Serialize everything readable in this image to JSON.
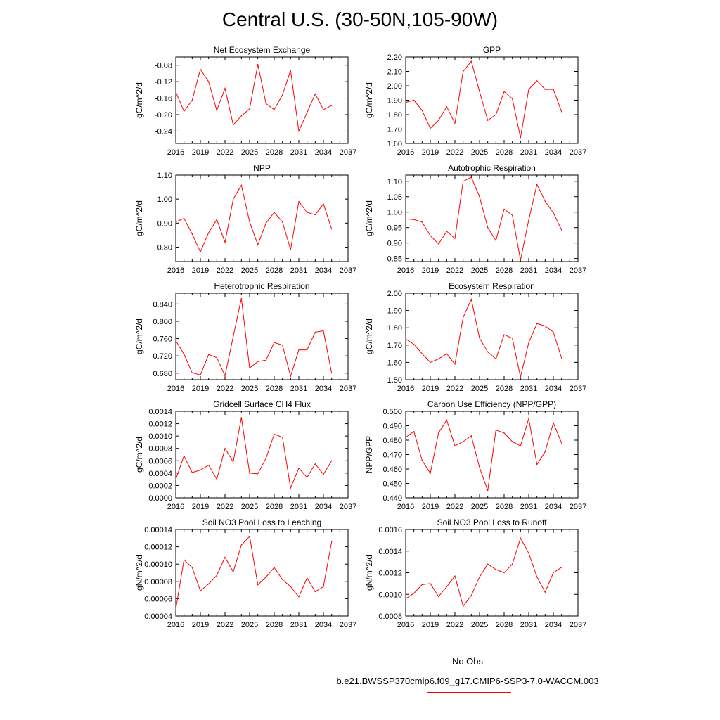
{
  "title": "Central U.S. (30-50N,105-90W)",
  "colors": {
    "model": "#ff0000",
    "obs": "#6666ff",
    "axis": "#000000"
  },
  "legend": {
    "title": "No Obs",
    "model_label": "b.e21.BWSSP370cmip6.f09_g17.CMIP6-SSP3-7.0-WACCM.003"
  },
  "chart_data": [
    {
      "type": "line",
      "title": "Net Ecosystem Exchange",
      "ylabel": "gC/m^2/d",
      "xlim": [
        2016,
        2037
      ],
      "ylim": [
        -0.27,
        -0.06
      ],
      "xticks": [
        "2016",
        "2019",
        "2022",
        "2025",
        "2028",
        "2031",
        "2034",
        "2037"
      ],
      "yticks": [
        "-0.08",
        "-0.12",
        "-0.16",
        "-0.20",
        "-0.24"
      ],
      "x": [
        2016,
        2017,
        2018,
        2019,
        2020,
        2021,
        2022,
        2023,
        2024,
        2025,
        2026,
        2027,
        2028,
        2029,
        2030,
        2031,
        2032,
        2033,
        2034,
        2035
      ],
      "series": [
        {
          "values": [
            -0.145,
            -0.192,
            -0.165,
            -0.09,
            -0.12,
            -0.19,
            -0.136,
            -0.225,
            -0.203,
            -0.186,
            -0.078,
            -0.173,
            -0.188,
            -0.152,
            -0.093,
            -0.24,
            -0.195,
            -0.15,
            -0.188,
            -0.178
          ]
        }
      ]
    },
    {
      "type": "line",
      "title": "GPP",
      "ylabel": "gC/m^2/d",
      "xlim": [
        2016,
        2037
      ],
      "ylim": [
        1.6,
        2.2
      ],
      "xticks": [
        "2016",
        "2019",
        "2022",
        "2025",
        "2028",
        "2031",
        "2034",
        "2037"
      ],
      "yticks": [
        "2.20",
        "2.10",
        "2.00",
        "1.90",
        "1.80",
        "1.70",
        "1.60"
      ],
      "x": [
        2016,
        2017,
        2018,
        2019,
        2020,
        2021,
        2022,
        2023,
        2024,
        2025,
        2026,
        2027,
        2028,
        2029,
        2030,
        2031,
        2032,
        2033,
        2034,
        2035
      ],
      "series": [
        {
          "values": [
            1.885,
            1.9,
            1.83,
            1.705,
            1.76,
            1.855,
            1.74,
            2.1,
            2.17,
            1.96,
            1.76,
            1.8,
            1.96,
            1.91,
            1.64,
            1.975,
            2.035,
            1.975,
            1.975,
            1.82
          ]
        }
      ]
    },
    {
      "type": "line",
      "title": "NPP",
      "ylabel": "gC/m^2/d",
      "xlim": [
        2016,
        2037
      ],
      "ylim": [
        0.74,
        1.1
      ],
      "xticks": [
        "2016",
        "2019",
        "2022",
        "2025",
        "2028",
        "2031",
        "2034",
        "2037"
      ],
      "yticks": [
        "1.10",
        "1.00",
        "0.90",
        "0.80"
      ],
      "x": [
        2016,
        2017,
        2018,
        2019,
        2020,
        2021,
        2022,
        2023,
        2024,
        2025,
        2026,
        2027,
        2028,
        2029,
        2030,
        2031,
        2032,
        2033,
        2034,
        2035
      ],
      "series": [
        {
          "values": [
            0.905,
            0.92,
            0.855,
            0.78,
            0.86,
            0.915,
            0.82,
            1.0,
            1.058,
            0.905,
            0.81,
            0.9,
            0.945,
            0.905,
            0.79,
            0.99,
            0.945,
            0.935,
            0.98,
            0.875
          ]
        }
      ]
    },
    {
      "type": "line",
      "title": "Autotrophic Respiration",
      "ylabel": "gC/m^2/d",
      "xlim": [
        2016,
        2037
      ],
      "ylim": [
        0.84,
        1.12
      ],
      "xticks": [
        "2016",
        "2019",
        "2022",
        "2025",
        "2028",
        "2031",
        "2034",
        "2037"
      ],
      "yticks": [
        "1.10",
        "1.05",
        "1.00",
        "0.95",
        "0.90",
        "0.85"
      ],
      "x": [
        2016,
        2017,
        2018,
        2019,
        2020,
        2021,
        2022,
        2023,
        2024,
        2025,
        2026,
        2027,
        2028,
        2029,
        2030,
        2031,
        2032,
        2033,
        2034,
        2035
      ],
      "series": [
        {
          "values": [
            0.978,
            0.976,
            0.968,
            0.924,
            0.897,
            0.938,
            0.915,
            1.1,
            1.113,
            1.05,
            0.95,
            0.908,
            1.01,
            0.99,
            0.845,
            0.975,
            1.09,
            1.035,
            0.998,
            0.942
          ]
        }
      ]
    },
    {
      "type": "line",
      "title": "Heterotrophic Respiration",
      "ylabel": "gC/m^2/d",
      "xlim": [
        2016,
        2037
      ],
      "ylim": [
        0.665,
        0.865
      ],
      "xticks": [
        "2016",
        "2019",
        "2022",
        "2025",
        "2028",
        "2031",
        "2034",
        "2037"
      ],
      "yticks": [
        "0.840",
        "0.800",
        "0.760",
        "0.720",
        "0.680"
      ],
      "x": [
        2016,
        2017,
        2018,
        2019,
        2020,
        2021,
        2022,
        2023,
        2024,
        2025,
        2026,
        2027,
        2028,
        2029,
        2030,
        2031,
        2032,
        2033,
        2034,
        2035
      ],
      "series": [
        {
          "values": [
            0.755,
            0.724,
            0.681,
            0.676,
            0.723,
            0.716,
            0.674,
            0.765,
            0.853,
            0.692,
            0.707,
            0.71,
            0.751,
            0.745,
            0.673,
            0.734,
            0.734,
            0.775,
            0.778,
            0.68
          ]
        }
      ]
    },
    {
      "type": "line",
      "title": "Ecosystem Respiration",
      "ylabel": "gC/m^2/d",
      "xlim": [
        2016,
        2037
      ],
      "ylim": [
        1.5,
        2.0
      ],
      "xticks": [
        "2016",
        "2019",
        "2022",
        "2025",
        "2028",
        "2031",
        "2034",
        "2037"
      ],
      "yticks": [
        "2.00",
        "1.90",
        "1.80",
        "1.70",
        "1.60",
        "1.50"
      ],
      "x": [
        2016,
        2017,
        2018,
        2019,
        2020,
        2021,
        2022,
        2023,
        2024,
        2025,
        2026,
        2027,
        2028,
        2029,
        2030,
        2031,
        2032,
        2033,
        2034,
        2035
      ],
      "series": [
        {
          "values": [
            1.735,
            1.705,
            1.65,
            1.6,
            1.62,
            1.65,
            1.59,
            1.86,
            1.965,
            1.74,
            1.66,
            1.62,
            1.76,
            1.74,
            1.515,
            1.715,
            1.825,
            1.81,
            1.775,
            1.625
          ]
        }
      ]
    },
    {
      "type": "line",
      "title": "Gridcell Surface CH4 Flux",
      "ylabel": "gC/m^2/d",
      "xlim": [
        2016,
        2037
      ],
      "ylim": [
        0.0,
        0.0014
      ],
      "xticks": [
        "2016",
        "2019",
        "2022",
        "2025",
        "2028",
        "2031",
        "2034",
        "2037"
      ],
      "yticks": [
        "0.0014",
        "0.0012",
        "0.0010",
        "0.0008",
        "0.0006",
        "0.0004",
        "0.0002",
        "0.0000"
      ],
      "x": [
        2016,
        2017,
        2018,
        2019,
        2020,
        2021,
        2022,
        2023,
        2024,
        2025,
        2026,
        2027,
        2028,
        2029,
        2030,
        2031,
        2032,
        2033,
        2034,
        2035
      ],
      "series": [
        {
          "values": [
            0.0003,
            0.00068,
            0.00041,
            0.00045,
            0.00053,
            0.0003,
            0.0008,
            0.00058,
            0.0013,
            0.0004,
            0.00039,
            0.00064,
            0.00103,
            0.00098,
            0.00016,
            0.00048,
            0.00033,
            0.00055,
            0.00038,
            0.0006
          ]
        }
      ]
    },
    {
      "type": "line",
      "title": "Carbon Use Efficiency (NPP/GPP)",
      "ylabel": "NPP/GPP",
      "xlim": [
        2016,
        2037
      ],
      "ylim": [
        0.44,
        0.5
      ],
      "xticks": [
        "2016",
        "2019",
        "2022",
        "2025",
        "2028",
        "2031",
        "2034",
        "2037"
      ],
      "yticks": [
        "0.500",
        "0.490",
        "0.480",
        "0.470",
        "0.460",
        "0.450",
        "0.440"
      ],
      "x": [
        2016,
        2017,
        2018,
        2019,
        2020,
        2021,
        2022,
        2023,
        2024,
        2025,
        2026,
        2027,
        2028,
        2029,
        2030,
        2031,
        2032,
        2033,
        2034,
        2035
      ],
      "series": [
        {
          "values": [
            0.482,
            0.486,
            0.466,
            0.457,
            0.485,
            0.494,
            0.476,
            0.479,
            0.483,
            0.461,
            0.445,
            0.487,
            0.485,
            0.479,
            0.476,
            0.495,
            0.463,
            0.472,
            0.492,
            0.478
          ]
        }
      ]
    },
    {
      "type": "line",
      "title": "Soil NO3 Pool Loss to Leaching",
      "ylabel": "gN/m^2/d",
      "xlim": [
        2016,
        2037
      ],
      "ylim": [
        4e-05,
        0.00014
      ],
      "xticks": [
        "2016",
        "2019",
        "2022",
        "2025",
        "2028",
        "2031",
        "2034",
        "2037"
      ],
      "yticks": [
        "0.00014",
        "0.00012",
        "0.00010",
        "0.00008",
        "0.00006",
        "0.00004"
      ],
      "x": [
        2016,
        2017,
        2018,
        2019,
        2020,
        2021,
        2022,
        2023,
        2024,
        2025,
        2026,
        2027,
        2028,
        2029,
        2030,
        2031,
        2032,
        2033,
        2034,
        2035
      ],
      "series": [
        {
          "values": [
            4.8e-05,
            0.000105,
            9.6e-05,
            6.9e-05,
            7.7e-05,
            8.7e-05,
            0.000108,
            9.1e-05,
            0.000122,
            0.000132,
            7.6e-05,
            8.5e-05,
            9.6e-05,
            8.2e-05,
            7.4e-05,
            6.2e-05,
            8.4e-05,
            6.8e-05,
            7.4e-05,
            0.000126
          ]
        }
      ]
    },
    {
      "type": "line",
      "title": "Soil NO3 Pool Loss to Runoff",
      "ylabel": "gN/m^2/d",
      "xlim": [
        2016,
        2037
      ],
      "ylim": [
        0.0008,
        0.0016
      ],
      "xticks": [
        "2016",
        "2019",
        "2022",
        "2025",
        "2028",
        "2031",
        "2034",
        "2037"
      ],
      "yticks": [
        "0.0016",
        "0.0014",
        "0.0012",
        "0.0010",
        "0.0008"
      ],
      "x": [
        2016,
        2017,
        2018,
        2019,
        2020,
        2021,
        2022,
        2023,
        2024,
        2025,
        2026,
        2027,
        2028,
        2029,
        2030,
        2031,
        2032,
        2033,
        2034,
        2035
      ],
      "series": [
        {
          "values": [
            0.00096,
            0.00101,
            0.00109,
            0.0011,
            0.00098,
            0.00107,
            0.00117,
            0.00089,
            0.00099,
            0.00116,
            0.00128,
            0.00123,
            0.0012,
            0.00128,
            0.00152,
            0.00138,
            0.00116,
            0.00102,
            0.0012,
            0.00125
          ]
        }
      ]
    }
  ]
}
